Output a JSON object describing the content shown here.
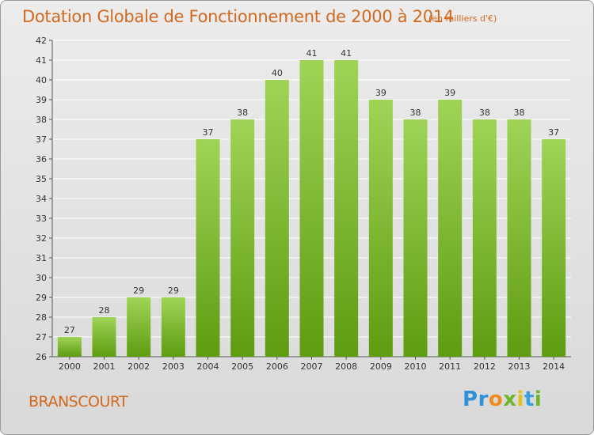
{
  "title": "Dotation Globale de Fonctionnement de 2000 à 2014",
  "subtitle": "(en milliers d'€)",
  "commune": "BRANSCOURT",
  "logo": {
    "text": "Proxiti",
    "colors": [
      "#2f8fd8",
      "#ef8a1c",
      "#6fb52c",
      "#e4c21a",
      "#3aa0dd"
    ]
  },
  "colors": {
    "bar_top": "#9fd456",
    "bar_bottom": "#5e9c10",
    "text_accent": "#d2691e",
    "gridline": "#ffffff"
  },
  "chart_data": {
    "type": "bar",
    "title": "Dotation Globale de Fonctionnement de 2000 à 2014",
    "subtitle": "(en milliers d'€)",
    "xlabel": "",
    "ylabel": "",
    "categories": [
      "2000",
      "2001",
      "2002",
      "2003",
      "2004",
      "2005",
      "2006",
      "2007",
      "2008",
      "2009",
      "2010",
      "2011",
      "2012",
      "2013",
      "2014"
    ],
    "values": [
      27,
      28,
      29,
      29,
      37,
      38,
      40,
      41,
      41,
      39,
      38,
      39,
      38,
      38,
      37
    ],
    "ylim": [
      26,
      42
    ],
    "yticks": [
      26,
      27,
      28,
      29,
      30,
      31,
      32,
      33,
      34,
      35,
      36,
      37,
      38,
      39,
      40,
      41,
      42
    ],
    "grid": true,
    "data_labels": true
  }
}
